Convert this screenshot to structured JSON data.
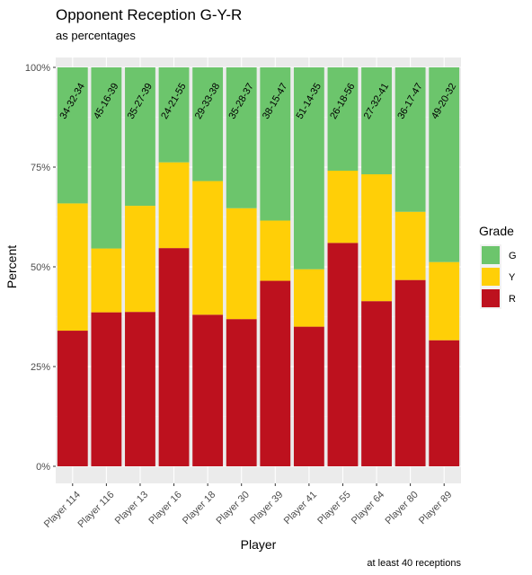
{
  "chart_data": {
    "type": "bar",
    "stacked": true,
    "title": "Opponent Reception G-Y-R",
    "subtitle": "as percentages",
    "caption": "at least 40 receptions",
    "xlabel": "Player",
    "ylabel": "Percent",
    "ylim": [
      0,
      100
    ],
    "yticks": [
      "0%",
      "25%",
      "50%",
      "75%",
      "100%"
    ],
    "ytick_values": [
      0,
      25,
      50,
      75,
      100
    ],
    "grid": true,
    "legend_position": "right",
    "categories": [
      "Player 114",
      "Player 116",
      "Player 13",
      "Player 16",
      "Player 18",
      "Player 30",
      "Player 39",
      "Player 41",
      "Player 55",
      "Player 64",
      "Player 80",
      "Player 89"
    ],
    "bar_labels": [
      "34-32-34",
      "45-16-39",
      "35-27-39",
      "24-21-55",
      "29-33-38",
      "35-28-37",
      "38-15-47",
      "51-14-35",
      "26-18-56",
      "27-32-41",
      "36-17-47",
      "49-20-32"
    ],
    "series": [
      {
        "name": "R",
        "color": "#BD111E",
        "values": [
          34,
          38.6,
          38.7,
          54.7,
          38,
          36.9,
          46.5,
          35,
          56,
          41.4,
          46.7,
          31.6
        ]
      },
      {
        "name": "Y",
        "color": "#FFCF07",
        "values": [
          31.9,
          16,
          26.6,
          21.5,
          33.5,
          27.8,
          15.1,
          14.4,
          18.1,
          31.8,
          17.1,
          19.6
        ]
      },
      {
        "name": "G",
        "color": "#6CC56C",
        "values": [
          34.1,
          45.4,
          34.7,
          23.8,
          28.5,
          35.3,
          38.4,
          50.6,
          25.9,
          26.8,
          36.2,
          48.8
        ]
      }
    ],
    "legend": {
      "title": "Grade",
      "items": [
        "G",
        "Y",
        "R"
      ]
    }
  }
}
